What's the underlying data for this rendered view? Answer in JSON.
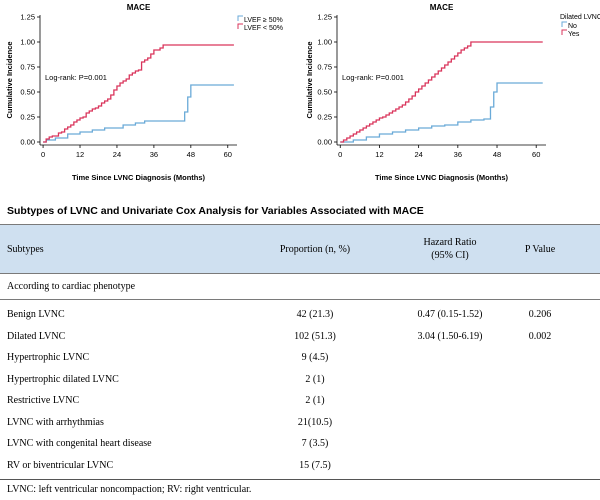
{
  "chart_data": [
    {
      "type": "line",
      "title": "MACE",
      "xlabel": "Time Since LVNC Diagnosis (Months)",
      "ylabel": "Cumulative Incidence",
      "xlim": [
        -1,
        63
      ],
      "ylim": [
        -0.03,
        1.27
      ],
      "xticks": [
        "0",
        "12",
        "24",
        "36",
        "48",
        "60"
      ],
      "yticks": [
        "0.00",
        "0.25",
        "0.50",
        "0.75",
        "1.00",
        "1.25"
      ],
      "annotation": "Log-rank: P=0.001",
      "legend_title": "",
      "legend_position": "top-right",
      "grid": false,
      "series": [
        {
          "name": "LVEF ≥ 50%",
          "color": "#6aaad8",
          "x": [
            0,
            1,
            4,
            8,
            12,
            16,
            20,
            26,
            30,
            33,
            38,
            40,
            44,
            46,
            47,
            48,
            62
          ],
          "y": [
            0,
            0.02,
            0.04,
            0.08,
            0.1,
            0.12,
            0.14,
            0.17,
            0.19,
            0.21,
            0.21,
            0.21,
            0.21,
            0.3,
            0.45,
            0.57,
            0.57
          ]
        },
        {
          "name": "LVEF < 50%",
          "color": "#d9345b",
          "x": [
            0,
            1,
            2,
            3,
            4,
            5,
            6,
            7,
            8,
            9,
            10,
            11,
            12,
            13,
            14,
            15,
            16,
            17,
            18,
            19,
            20,
            21,
            22,
            23,
            24,
            25,
            26,
            27,
            28,
            29,
            30,
            31,
            32,
            33,
            34,
            35,
            36,
            37,
            38,
            39,
            40,
            62
          ],
          "y": [
            0,
            0.03,
            0.05,
            0.06,
            0.06,
            0.09,
            0.1,
            0.13,
            0.15,
            0.17,
            0.2,
            0.22,
            0.24,
            0.25,
            0.29,
            0.31,
            0.33,
            0.34,
            0.36,
            0.39,
            0.41,
            0.43,
            0.47,
            0.52,
            0.56,
            0.59,
            0.61,
            0.63,
            0.67,
            0.69,
            0.71,
            0.72,
            0.8,
            0.82,
            0.84,
            0.88,
            0.92,
            0.92,
            0.94,
            0.97,
            0.97,
            0.97
          ]
        }
      ]
    },
    {
      "type": "line",
      "title": "MACE",
      "xlabel": "Time Since LVNC Diagnosis (Months)",
      "ylabel": "Cumulative Incidence",
      "xlim": [
        -1,
        63
      ],
      "ylim": [
        -0.03,
        1.27
      ],
      "xticks": [
        "0",
        "12",
        "24",
        "36",
        "48",
        "60"
      ],
      "yticks": [
        "0.00",
        "0.25",
        "0.50",
        "0.75",
        "1.00",
        "1.25"
      ],
      "annotation": "Log-rank: P=0.001",
      "legend_title": "Dilated LVNC",
      "legend_position": "top-right",
      "grid": false,
      "series": [
        {
          "name": "No",
          "color": "#6aaad8",
          "x": [
            0,
            4,
            8,
            12,
            16,
            20,
            24,
            28,
            32,
            36,
            40,
            44,
            46,
            47,
            48,
            62
          ],
          "y": [
            0,
            0.02,
            0.05,
            0.08,
            0.1,
            0.12,
            0.14,
            0.16,
            0.17,
            0.2,
            0.22,
            0.23,
            0.35,
            0.5,
            0.59,
            0.59
          ]
        },
        {
          "name": "Yes",
          "color": "#d9345b",
          "x": [
            0,
            1,
            2,
            3,
            4,
            5,
            6,
            7,
            8,
            9,
            10,
            11,
            12,
            13,
            14,
            15,
            16,
            17,
            18,
            19,
            20,
            21,
            22,
            23,
            24,
            25,
            26,
            27,
            28,
            29,
            30,
            31,
            32,
            33,
            34,
            35,
            36,
            37,
            38,
            39,
            40,
            62
          ],
          "y": [
            0,
            0.02,
            0.04,
            0.06,
            0.08,
            0.1,
            0.12,
            0.14,
            0.16,
            0.18,
            0.2,
            0.22,
            0.24,
            0.25,
            0.27,
            0.29,
            0.31,
            0.33,
            0.35,
            0.37,
            0.4,
            0.43,
            0.46,
            0.5,
            0.53,
            0.56,
            0.59,
            0.62,
            0.65,
            0.68,
            0.71,
            0.74,
            0.77,
            0.8,
            0.83,
            0.86,
            0.89,
            0.92,
            0.94,
            0.96,
            1.0,
            1.0
          ]
        }
      ]
    }
  ],
  "table": {
    "title": "Subtypes of LVNC and Univariate Cox Analysis for Variables Associated with MACE",
    "headers": {
      "subtypes": "Subtypes",
      "proportion": "Proportion (n, %)",
      "hr_line1": "Hazard Ratio",
      "hr_line2": "(95% CI)",
      "pvalue": "P Value"
    },
    "section": "According to cardiac phenotype",
    "rows": [
      {
        "subtype": "Benign LVNC",
        "proportion": "42 (21.3)",
        "hr": "0.47 (0.15-1.52)",
        "p": "0.206"
      },
      {
        "subtype": "Dilated LVNC",
        "proportion": "102 (51.3)",
        "hr": "3.04 (1.50-6.19)",
        "p": "0.002"
      },
      {
        "subtype": "Hypertrophic LVNC",
        "proportion": "9 (4.5)",
        "hr": "",
        "p": ""
      },
      {
        "subtype": "Hypertrophic dilated LVNC",
        "proportion": "2 (1)",
        "hr": "",
        "p": ""
      },
      {
        "subtype": "Restrictive LVNC",
        "proportion": "2 (1)",
        "hr": "",
        "p": ""
      },
      {
        "subtype": "LVNC with arrhythmias",
        "proportion": "21(10.5)",
        "hr": "",
        "p": ""
      },
      {
        "subtype": "LVNC with congenital heart disease",
        "proportion": "7 (3.5)",
        "hr": "",
        "p": ""
      },
      {
        "subtype": "RV or biventricular LVNC",
        "proportion": "15 (7.5)",
        "hr": "",
        "p": ""
      }
    ],
    "footnote": "LVNC: left ventricular noncompaction; RV: right ventricular."
  }
}
